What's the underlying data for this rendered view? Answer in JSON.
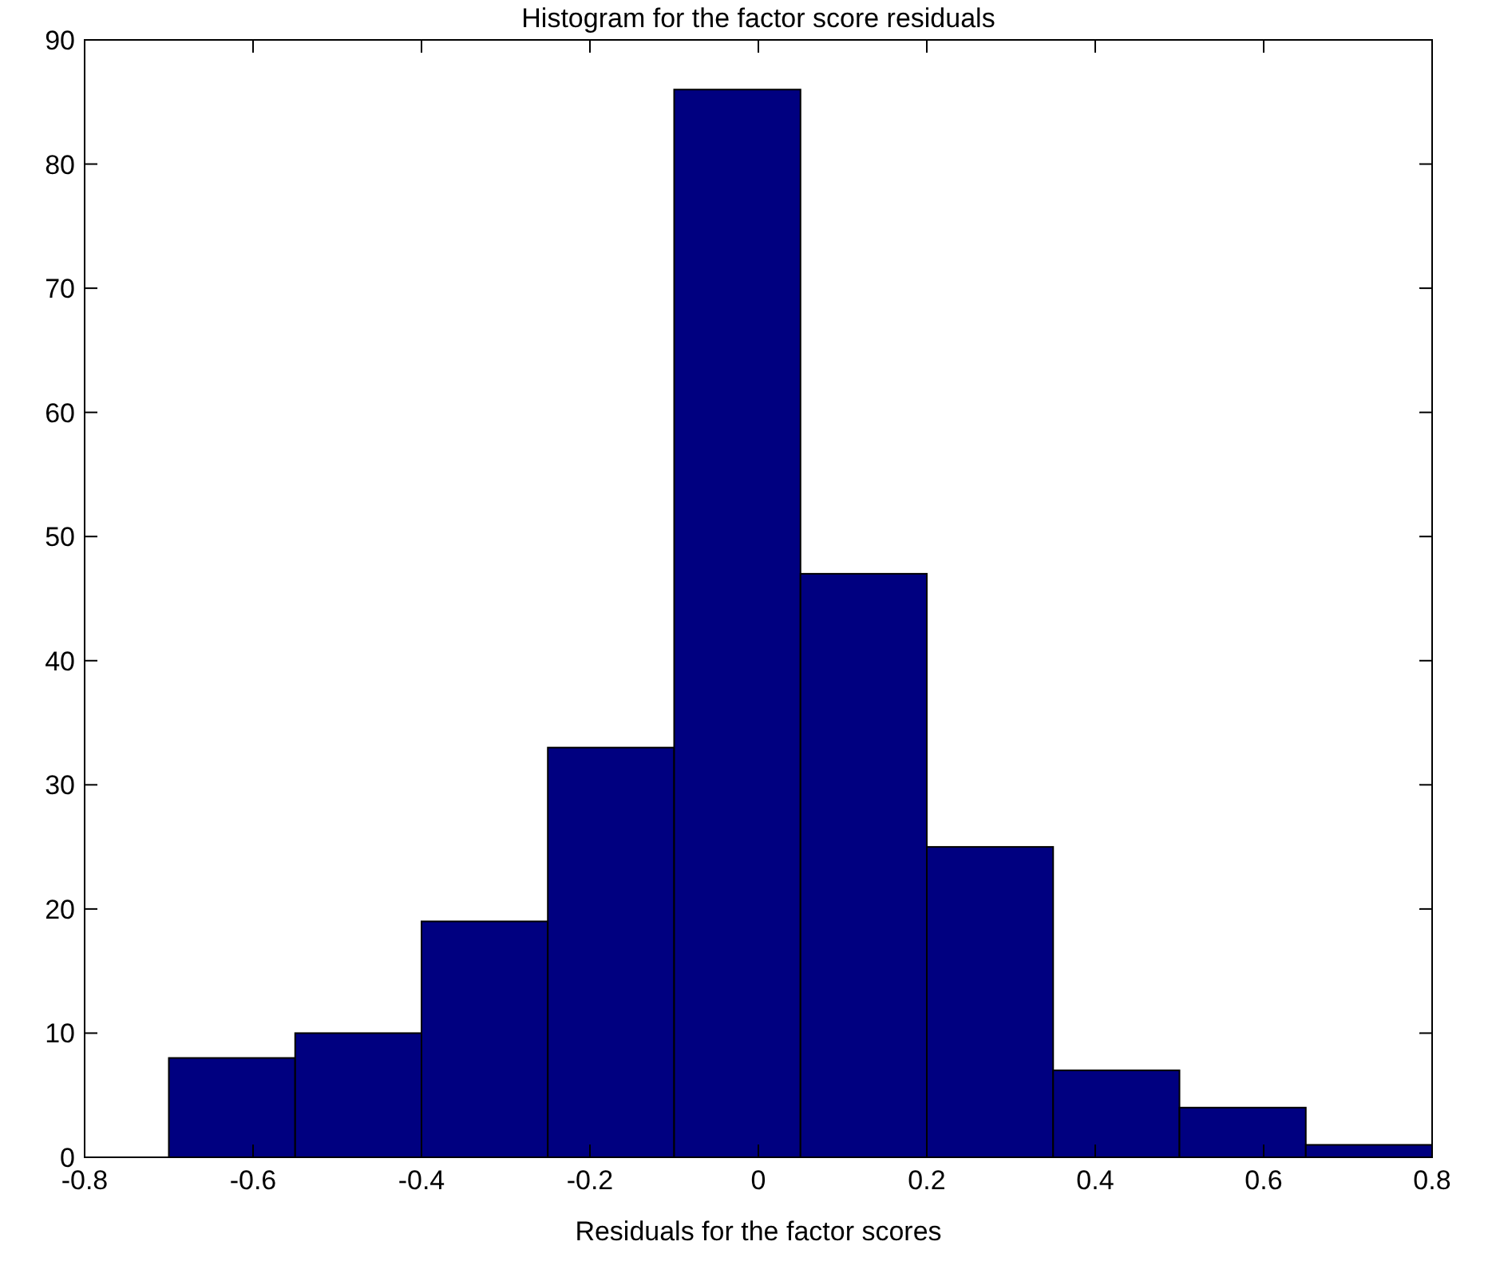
{
  "chart_data": {
    "type": "histogram",
    "title": "Histogram for the factor score residuals",
    "xlabel": "Residuals for the factor scores",
    "bins": [
      -0.7,
      -0.55,
      -0.4,
      -0.25,
      -0.1,
      0.05,
      0.2,
      0.35,
      0.5,
      0.65,
      0.8
    ],
    "values": [
      8,
      10,
      19,
      33,
      86,
      47,
      25,
      7,
      4,
      1
    ],
    "color": "#000080",
    "xlim": [
      -0.8,
      0.8
    ],
    "xticks": [
      -0.8,
      -0.6,
      -0.4,
      -0.2,
      0,
      0.2,
      0.4,
      0.6,
      0.8
    ],
    "ylim": [
      0,
      90
    ],
    "yticks": [
      0,
      10,
      20,
      30,
      40,
      50,
      60,
      70,
      80,
      90
    ],
    "grid": false
  }
}
